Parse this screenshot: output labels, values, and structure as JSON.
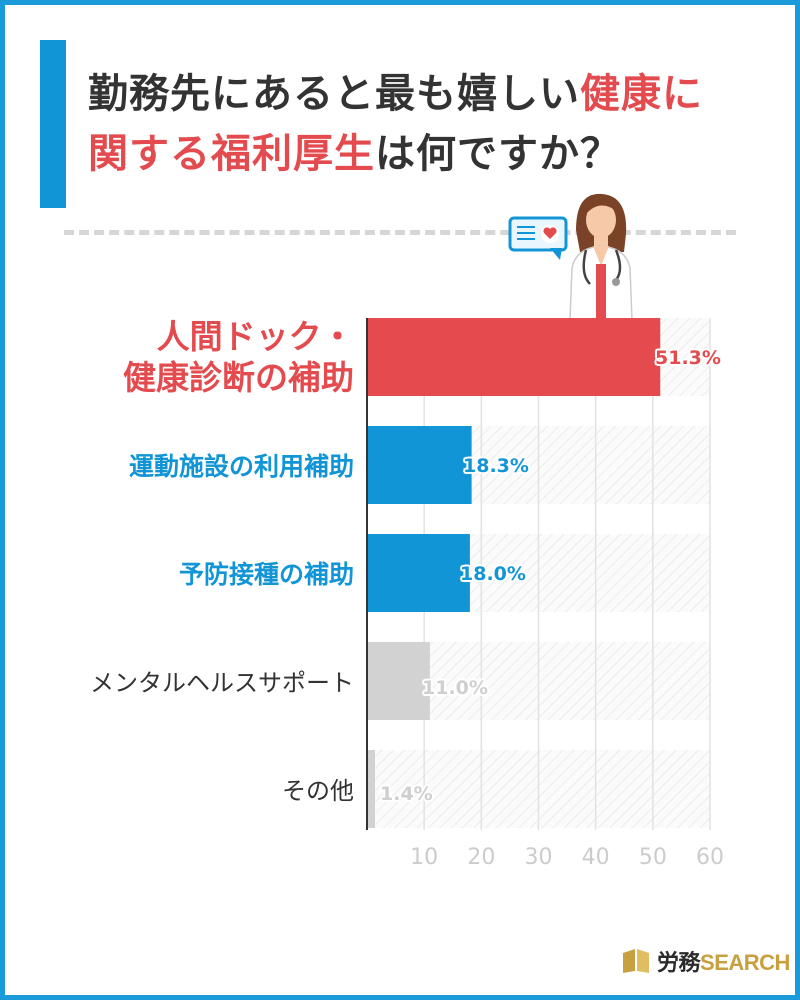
{
  "title": {
    "part1": "勤務先にあると最も嬉しい",
    "highlight1": "健康に",
    "highlight2": "関する福利厚生",
    "part2": "は何ですか？"
  },
  "brand": {
    "logo_prefix": "労務",
    "logo_suffix": "SEARCH"
  },
  "colors": {
    "highlight": "#e34b4f",
    "primary_blue": "#1295d6",
    "other_gray": "#d2d2d2"
  },
  "chart_data": {
    "type": "bar",
    "orientation": "horizontal",
    "categories": [
      "人間ドック・健康診断の補助",
      "運動施設の利用補助",
      "予防接種の補助",
      "メンタルヘルスサポート",
      "その他"
    ],
    "category_lines": [
      [
        "人間ドック・",
        "健康診断の補助"
      ],
      [
        "運動施設の利用補助"
      ],
      [
        "予防接種の補助"
      ],
      [
        "メンタルヘルスサポート"
      ],
      [
        "その他"
      ]
    ],
    "values": [
      51.3,
      18.3,
      18.0,
      11.0,
      1.4
    ],
    "value_labels": [
      "51.3%",
      "18.3%",
      "18.0%",
      "11.0%",
      "1.4%"
    ],
    "bar_colors": [
      "#e34b4f",
      "#1295d6",
      "#1295d6",
      "#d2d2d2",
      "#d2d2d2"
    ],
    "xlim": [
      0,
      60
    ],
    "xticks": [
      10,
      20,
      30,
      40,
      50,
      60
    ],
    "title": "",
    "xlabel": "",
    "ylabel": "",
    "grid": true
  }
}
